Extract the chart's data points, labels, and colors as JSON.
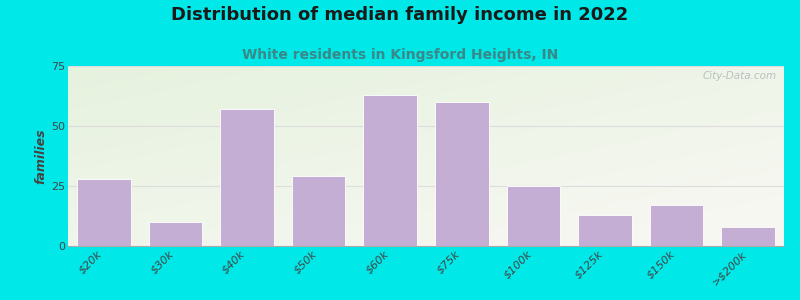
{
  "title": "Distribution of median family income in 2022",
  "subtitle": "White residents in Kingsford Heights, IN",
  "categories": [
    "$20k",
    "$30k",
    "$40k",
    "$50k",
    "$60k",
    "$75k",
    "$100k",
    "$125k",
    "$150k",
    ">$200k"
  ],
  "values": [
    28,
    10,
    57,
    29,
    63,
    60,
    25,
    13,
    17,
    8
  ],
  "bar_color": "#c4aed4",
  "bar_edge_color": "#ffffff",
  "ylabel": "families",
  "ylim": [
    0,
    75
  ],
  "yticks": [
    0,
    25,
    50,
    75
  ],
  "bg_top_left": "#d6efd6",
  "bg_bottom_right": "#f0f8f0",
  "bg_right": "#f5f5f0",
  "outer_bg": "#00e8e8",
  "title_fontsize": 13,
  "subtitle_fontsize": 10,
  "title_color": "#1a1a1a",
  "subtitle_color": "#3a8888",
  "watermark": "City-Data.com",
  "grid_color": "#e0e0e0"
}
